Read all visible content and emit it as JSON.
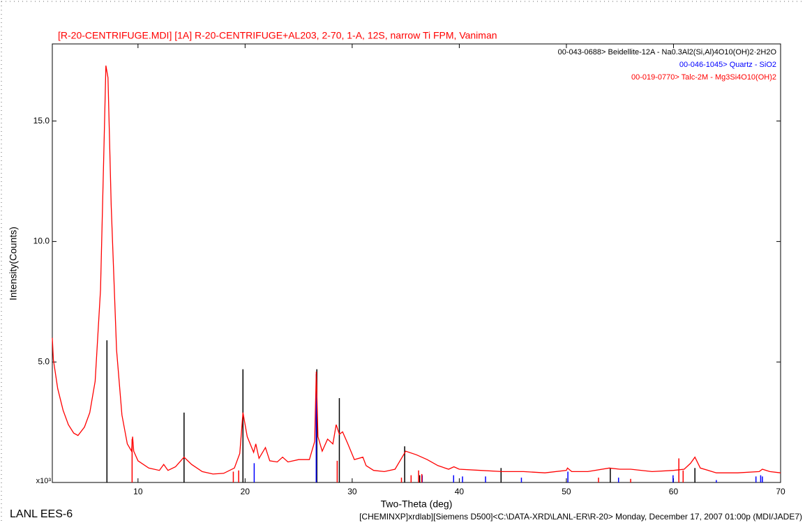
{
  "chart_data": {
    "type": "line",
    "title": "[R-20-CENTRIFUGE.MDI] [1A] R-20-CENTRIFUGE+AL203, 2-70, 1-A, 12S, narrow Ti FPM, Vaniman",
    "title_color": "#ff0000",
    "x_label": "Two-Theta (deg)",
    "y_label": "Intensity(Counts)",
    "y_unit_label": "x10³",
    "footer_left": "LANL EES-6",
    "footer_right": "[CHEMINXP]xrdlab][Siemens D500]<C:\\DATA-XRD\\LANL-ER\\R-20> Monday, December 17, 2007 01:00p (MDI/JADE7)",
    "xlim": [
      2,
      70
    ],
    "xticks": [
      10,
      20,
      30,
      40,
      50,
      60,
      70
    ],
    "ylim": [
      0,
      18.2
    ],
    "yticks": [
      {
        "value": 5,
        "label": "5.0"
      },
      {
        "value": 10,
        "label": "10.0"
      },
      {
        "value": 15,
        "label": "15.0"
      }
    ],
    "scan": {
      "color": "#ff0000",
      "x": [
        2.0,
        2.1,
        2.5,
        3.0,
        3.5,
        4.0,
        4.4,
        5.0,
        5.5,
        6.0,
        6.5,
        6.8,
        7.0,
        7.2,
        7.5,
        8.0,
        8.5,
        9.0,
        9.4,
        9.5,
        9.6,
        10,
        11,
        12,
        12.4,
        12.8,
        13.5,
        14.3,
        15,
        16,
        17,
        18,
        19,
        19.5,
        19.8,
        20.2,
        20.8,
        21,
        21.3,
        21.9,
        22.3,
        23,
        23.5,
        24,
        25,
        26,
        26.5,
        26.65,
        26.8,
        27.2,
        27.7,
        28.2,
        28.5,
        28.8,
        29.1,
        29.6,
        30.2,
        31,
        31.3,
        32,
        33,
        34,
        34.6,
        35,
        36,
        37,
        38,
        39,
        39.5,
        40,
        42,
        44,
        46,
        48,
        50,
        50.1,
        50.5,
        52,
        54,
        55,
        56,
        58,
        60,
        61,
        61.6,
        62,
        62.5,
        64,
        66,
        68,
        68.3,
        69,
        70
      ],
      "values": [
        6.0,
        5.1,
        3.9,
        3.0,
        2.4,
        2.05,
        1.95,
        2.3,
        2.9,
        4.2,
        8.0,
        13.5,
        17.3,
        16.8,
        11.5,
        5.5,
        2.8,
        1.6,
        1.3,
        1.9,
        1.3,
        0.9,
        0.6,
        0.5,
        0.75,
        0.5,
        0.65,
        1.05,
        0.75,
        0.45,
        0.35,
        0.38,
        0.6,
        1.2,
        2.9,
        1.9,
        1.25,
        1.6,
        1.0,
        1.45,
        0.9,
        0.85,
        1.05,
        0.85,
        0.95,
        0.95,
        1.7,
        4.6,
        1.9,
        1.3,
        1.8,
        1.6,
        2.4,
        2.0,
        2.1,
        1.6,
        0.95,
        1.05,
        0.7,
        0.5,
        0.45,
        0.55,
        1.0,
        1.3,
        1.15,
        0.95,
        0.7,
        0.55,
        0.65,
        0.55,
        0.5,
        0.45,
        0.45,
        0.4,
        0.5,
        0.6,
        0.45,
        0.45,
        0.6,
        0.55,
        0.55,
        0.45,
        0.5,
        0.55,
        0.8,
        1.05,
        0.6,
        0.4,
        0.4,
        0.45,
        0.55,
        0.45,
        0.4
      ]
    },
    "reference_patterns": [
      {
        "name": "00-043-0688> Beidellite-12A - Na0.3Al2(Si,Al)4O10(OH)2·2H2O",
        "color": "#000000",
        "x": [
          7.1,
          14.3,
          19.8,
          26.7,
          28.8,
          34.9,
          36.3,
          43.9,
          54.1,
          62.0
        ],
        "values": [
          5.9,
          2.9,
          4.7,
          4.7,
          3.5,
          1.5,
          0.3,
          0.6,
          0.6,
          0.6
        ]
      },
      {
        "name": "00-046-1045> Quartz - SiO2",
        "color": "#0000ff",
        "x": [
          20.85,
          26.64,
          36.54,
          39.47,
          40.3,
          42.45,
          45.8,
          50.14,
          54.87,
          59.96,
          64.0,
          67.7,
          68.14,
          68.3
        ],
        "values": [
          0.8,
          4.5,
          0.3,
          0.3,
          0.25,
          0.25,
          0.2,
          0.45,
          0.2,
          0.3,
          0.1,
          0.25,
          0.3,
          0.25
        ]
      },
      {
        "name": "00-019-0770> Talc-2M - Mg3Si4O10(OH)2",
        "color": "#ff0000",
        "x": [
          9.45,
          18.9,
          19.4,
          28.6,
          34.6,
          35.5,
          36.2,
          36.5,
          53.0,
          56.0,
          60.5,
          60.9
        ],
        "values": [
          1.8,
          0.45,
          0.5,
          0.9,
          0.2,
          0.3,
          0.5,
          0.35,
          0.2,
          0.15,
          1.0,
          0.5
        ]
      }
    ]
  }
}
